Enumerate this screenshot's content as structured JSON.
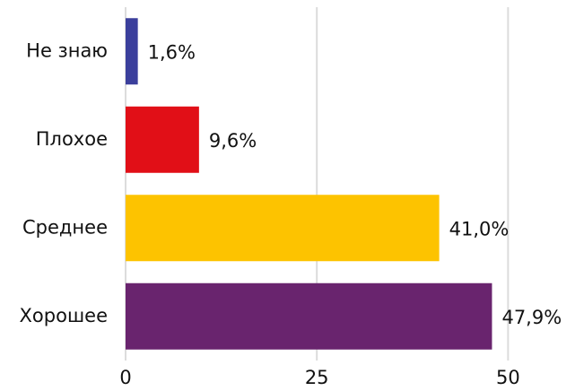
{
  "chart_data": {
    "type": "barh",
    "categories": [
      "Не знаю",
      "Плохое",
      "Среднее",
      "Хорошее"
    ],
    "values": [
      1.6,
      9.6,
      41.0,
      47.9
    ],
    "value_labels": [
      "1,6%",
      "9,6%",
      "41,0%",
      "47,9%"
    ],
    "colors": [
      "#3b3f9c",
      "#e10f17",
      "#fdc300",
      "#69246e"
    ],
    "xlim": [
      0,
      55
    ],
    "xticks": [
      0,
      25,
      50
    ],
    "grid": true
  }
}
